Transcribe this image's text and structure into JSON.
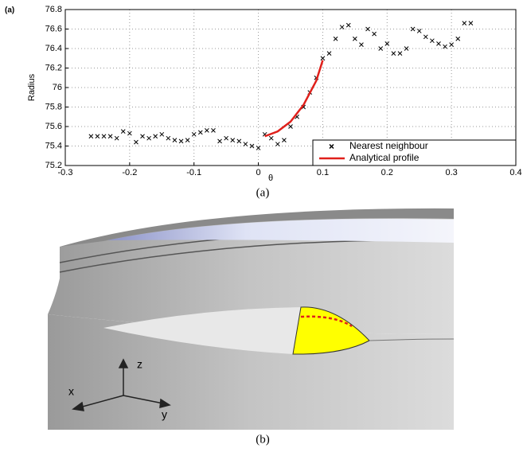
{
  "chart_data": {
    "type": "scatter",
    "panel_label": "(a)",
    "y_label": "Radius",
    "x_label": "θ",
    "xlim": [
      -0.3,
      0.4
    ],
    "xticks": [
      -0.3,
      -0.2,
      -0.1,
      0,
      0.1,
      0.2,
      0.3,
      0.4
    ],
    "ylim": [
      75.2,
      76.8
    ],
    "yticks": [
      75.2,
      75.4,
      75.6,
      75.8,
      76,
      76.2,
      76.4,
      76.6,
      76.8
    ],
    "grid": true,
    "legend": "lower right",
    "series": [
      {
        "name": "Nearest neighbour",
        "color": "#000000",
        "marker": "x",
        "x": [
          -0.26,
          -0.25,
          -0.24,
          -0.23,
          -0.22,
          -0.21,
          -0.2,
          -0.19,
          -0.18,
          -0.17,
          -0.16,
          -0.15,
          -0.14,
          -0.13,
          -0.12,
          -0.11,
          -0.1,
          -0.09,
          -0.08,
          -0.07,
          -0.06,
          -0.05,
          -0.04,
          -0.03,
          -0.02,
          -0.01,
          0,
          0.01,
          0.02,
          0.03,
          0.04,
          0.05,
          0.06,
          0.07,
          0.08,
          0.09,
          0.1,
          0.11,
          0.12,
          0.13,
          0.14,
          0.15,
          0.16,
          0.17,
          0.18,
          0.19,
          0.2,
          0.21,
          0.22,
          0.23,
          0.24,
          0.25,
          0.26,
          0.27,
          0.28,
          0.29,
          0.3,
          0.31,
          0.32,
          0.33
        ],
        "values": [
          75.5,
          75.5,
          75.5,
          75.5,
          75.48,
          75.55,
          75.53,
          75.44,
          75.5,
          75.48,
          75.5,
          75.52,
          75.48,
          75.46,
          75.45,
          75.46,
          75.52,
          75.54,
          75.56,
          75.56,
          75.45,
          75.48,
          75.46,
          75.45,
          75.42,
          75.4,
          75.38,
          75.52,
          75.48,
          75.42,
          75.46,
          75.6,
          75.7,
          75.8,
          75.95,
          76.1,
          76.3,
          76.35,
          76.5,
          76.62,
          76.64,
          76.5,
          76.44,
          76.6,
          76.55,
          76.4,
          76.45,
          76.35,
          76.35,
          76.4,
          76.6,
          76.58,
          76.52,
          76.48,
          76.45,
          76.42,
          76.44,
          76.5,
          76.66,
          76.66
        ]
      },
      {
        "name": "Analytical profile",
        "color": "#e0201b",
        "marker": "line",
        "x": [
          0.01,
          0.03,
          0.05,
          0.07,
          0.09,
          0.1
        ],
        "values": [
          75.5,
          75.55,
          75.65,
          75.82,
          76.07,
          76.28
        ]
      }
    ]
  },
  "captions": [
    "(a)",
    "(b)"
  ],
  "render": {
    "axis_labels": [
      "z",
      "x",
      "y"
    ]
  }
}
